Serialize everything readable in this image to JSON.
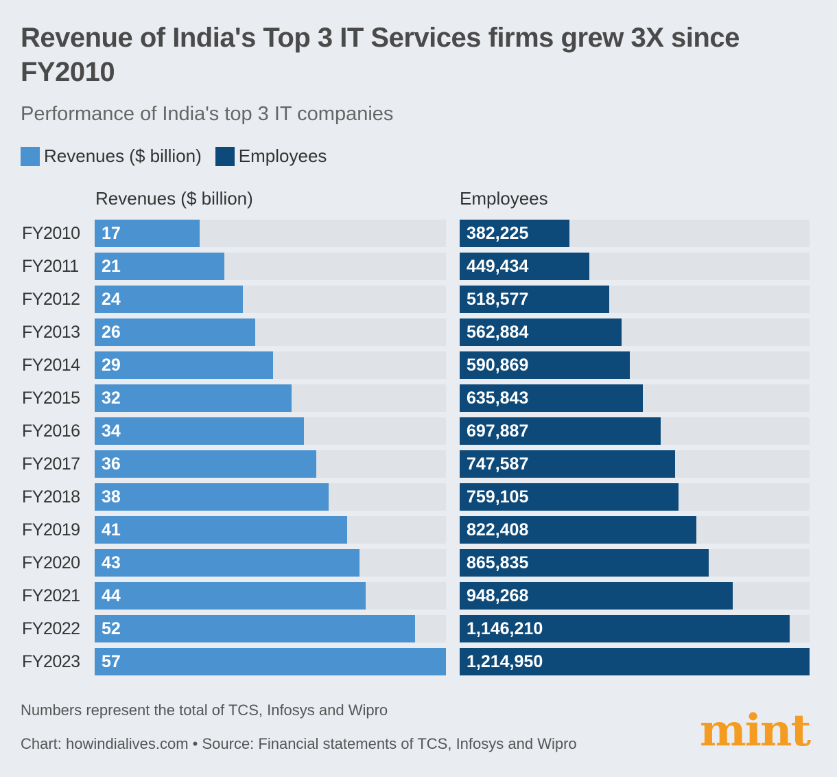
{
  "title": "Revenue of India's Top 3 IT Services firms grew 3X since FY2010",
  "subtitle": "Performance of India's top 3 IT companies",
  "logo": "mint",
  "colors": {
    "revenue": "#4b92d0",
    "employees": "#0d4a79",
    "track": "#dfe2e7",
    "logo": "#f39c21"
  },
  "notes": {
    "line1": "Numbers represent the total of TCS, Infosys and Wipro",
    "line2": "Chart: howindialives.com • Source: Financial statements of TCS, Infosys and Wipro"
  },
  "chart_data": [
    {
      "type": "bar",
      "orientation": "horizontal",
      "title": "Revenues ($ billion)",
      "legend": "Revenues ($ billion)",
      "categories": [
        "FY2010",
        "FY2011",
        "FY2012",
        "FY2013",
        "FY2014",
        "FY2015",
        "FY2016",
        "FY2017",
        "FY2018",
        "FY2019",
        "FY2020",
        "FY2021",
        "FY2022",
        "FY2023"
      ],
      "values": [
        17,
        21,
        24,
        26,
        29,
        32,
        34,
        36,
        38,
        41,
        43,
        44,
        52,
        57
      ],
      "labels": [
        "17",
        "21",
        "24",
        "26",
        "29",
        "32",
        "34",
        "36",
        "38",
        "41",
        "43",
        "44",
        "52",
        "57"
      ],
      "xlim": [
        0,
        57
      ]
    },
    {
      "type": "bar",
      "orientation": "horizontal",
      "title": "Employees",
      "legend": "Employees",
      "categories": [
        "FY2010",
        "FY2011",
        "FY2012",
        "FY2013",
        "FY2014",
        "FY2015",
        "FY2016",
        "FY2017",
        "FY2018",
        "FY2019",
        "FY2020",
        "FY2021",
        "FY2022",
        "FY2023"
      ],
      "values": [
        382225,
        449434,
        518577,
        562884,
        590869,
        635843,
        697887,
        747587,
        759105,
        822408,
        865835,
        948268,
        1146210,
        1214950
      ],
      "labels": [
        "382,225",
        "449,434",
        "518,577",
        "562,884",
        "590,869",
        "635,843",
        "697,887",
        "747,587",
        "759,105",
        "822,408",
        "865,835",
        "948,268",
        "1,146,210",
        "1,214,950"
      ],
      "xlim": [
        0,
        1214950
      ]
    }
  ]
}
